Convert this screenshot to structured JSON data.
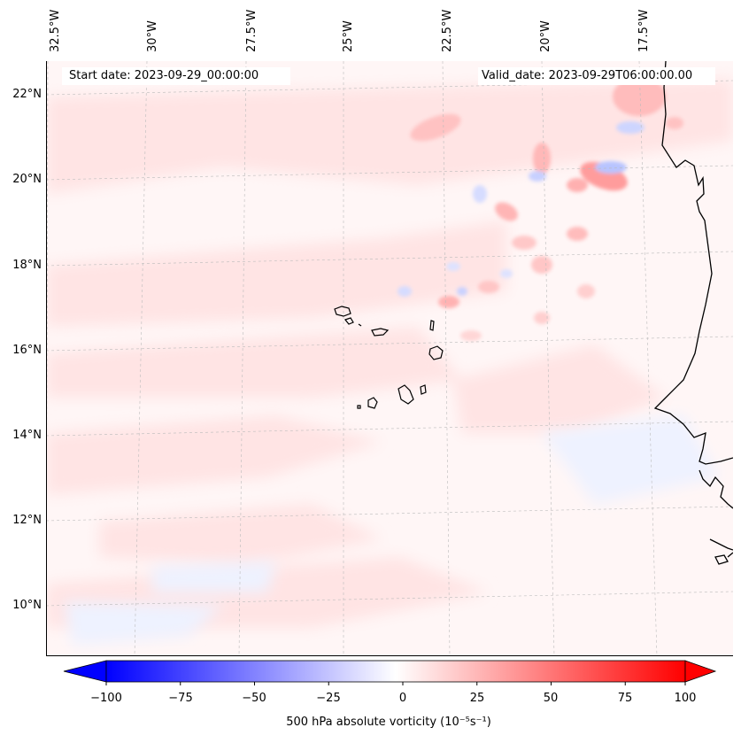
{
  "map": {
    "start_date": "Start date: 2023-09-29_00:00:00",
    "valid_date": "Valid_date: 2023-09-29T06:00:00.00",
    "lon_labels": [
      "32.5°W",
      "30°W",
      "27.5°W",
      "25°W",
      "22.5°W",
      "20°W",
      "17.5°W"
    ],
    "lat_labels": [
      "22°N",
      "20°N",
      "18°N",
      "16°N",
      "14°N",
      "12°N",
      "10°N"
    ],
    "colors": {
      "negative": "#0000ff",
      "positive": "#ff0000",
      "zero": "#ffffff",
      "coastline": "#000000",
      "gridline": "#bbbbbb"
    }
  },
  "colorbar": {
    "ticks": [
      "−100",
      "−75",
      "−50",
      "−25",
      "0",
      "25",
      "50",
      "75",
      "100"
    ],
    "min": -100,
    "max": 100,
    "label": "500 hPa absolute vorticity (10⁻⁵s⁻¹)"
  }
}
